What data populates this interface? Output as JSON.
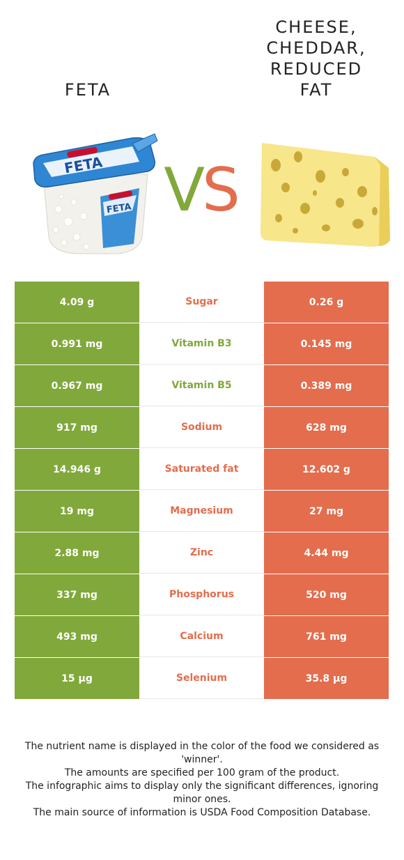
{
  "colors": {
    "left_winner": "#81a83a",
    "right_winner": "#e36d4d"
  },
  "foods": {
    "left": {
      "name": "FETA",
      "image_icon": "feta-container-icon"
    },
    "right": {
      "name": "CHEESE,\nCHEDDAR,\nREDUCED\nFAT",
      "image_icon": "cheese-wedge-icon"
    }
  },
  "vs": {
    "v": "V",
    "s": "S"
  },
  "rows": [
    {
      "left": "4.09 g",
      "nutrient": "Sugar",
      "right": "0.26 g",
      "winner": "right"
    },
    {
      "left": "0.991 mg",
      "nutrient": "Vitamin B3",
      "right": "0.145 mg",
      "winner": "left"
    },
    {
      "left": "0.967 mg",
      "nutrient": "Vitamin B5",
      "right": "0.389 mg",
      "winner": "left"
    },
    {
      "left": "917 mg",
      "nutrient": "Sodium",
      "right": "628 mg",
      "winner": "right"
    },
    {
      "left": "14.946 g",
      "nutrient": "Saturated fat",
      "right": "12.602 g",
      "winner": "right"
    },
    {
      "left": "19 mg",
      "nutrient": "Magnesium",
      "right": "27 mg",
      "winner": "right"
    },
    {
      "left": "2.88 mg",
      "nutrient": "Zinc",
      "right": "4.44 mg",
      "winner": "right"
    },
    {
      "left": "337 mg",
      "nutrient": "Phosphorus",
      "right": "520 mg",
      "winner": "right"
    },
    {
      "left": "493 mg",
      "nutrient": "Calcium",
      "right": "761 mg",
      "winner": "right"
    },
    {
      "left": "15 µg",
      "nutrient": "Selenium",
      "right": "35.8 µg",
      "winner": "right"
    }
  ],
  "footer": [
    "The nutrient name is displayed in the color of the food we considered as 'winner'.",
    "The amounts are specified per 100 gram of the product.",
    "The infographic aims to display only the significant differences, ignoring minor ones.",
    "The main source of information is USDA Food Composition Database."
  ]
}
